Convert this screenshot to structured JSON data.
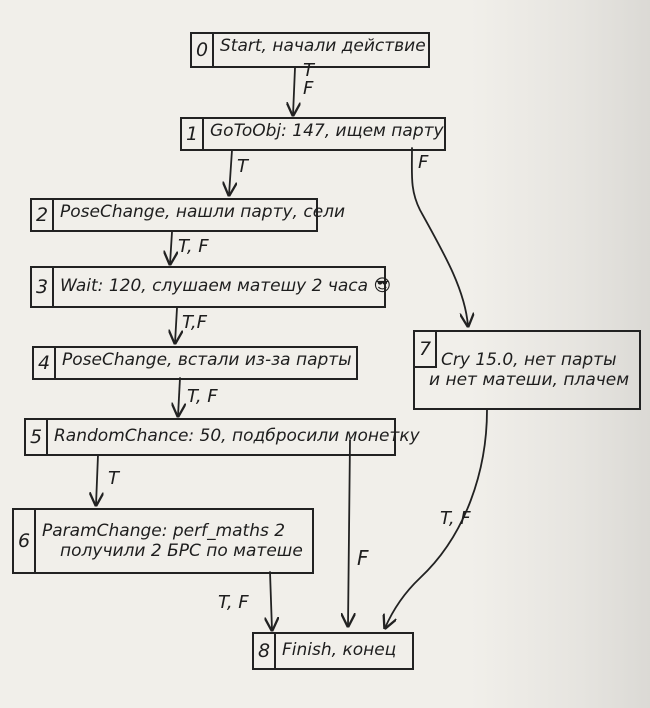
{
  "nodes": [
    {
      "num": "0",
      "text": "Start, начали действие"
    },
    {
      "num": "1",
      "text": "GoToObj: 147, ищем парту"
    },
    {
      "num": "2",
      "text": "PoseChange, нашли парту, сели"
    },
    {
      "num": "3",
      "text": "Wait: 120, слушаем матешу 2 часа 😎"
    },
    {
      "num": "4",
      "text": "PoseChange, встали из-за парты"
    },
    {
      "num": "5",
      "text": "RandomChance: 50, подбросили монетку"
    },
    {
      "num": "6",
      "line1": "ParamChange: perf_maths 2",
      "line2": "получили 2 БРС по матеше"
    },
    {
      "num": "7",
      "line1": "Cry 15.0, нет парты",
      "line2": "и нет матеши, плачем"
    },
    {
      "num": "8",
      "text": "Finish, конец"
    }
  ],
  "edge_labels": {
    "e0_1": "T\nF",
    "e1_2": "T",
    "e1_7": "F",
    "e2_3": "T, F",
    "e3_4": "T,F",
    "e4_5": "T, F",
    "e5_6": "T",
    "e5_8": "F",
    "e6_8": "T, F",
    "e7_8": "T, F"
  }
}
